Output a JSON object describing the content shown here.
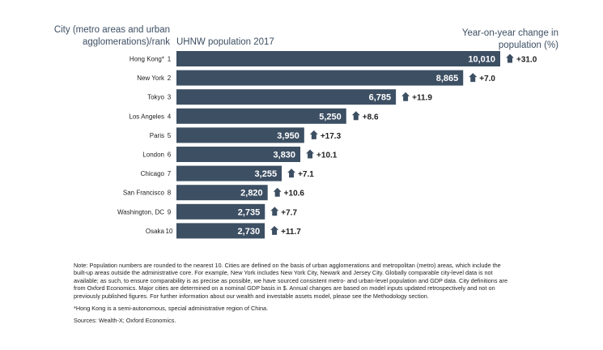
{
  "header": {
    "city_label": "City (metro areas and urban agglomerations)/rank",
    "population_label": "UHNW population 2017",
    "change_label": "Year-on-year change in population (%)"
  },
  "chart_data": {
    "type": "bar",
    "orientation": "horizontal",
    "title": "",
    "xlabel": "UHNW population 2017",
    "ylabel": "City (metro areas and urban agglomerations)/rank",
    "xlim": [
      0,
      10010
    ],
    "categories": [
      "Hong Kong*",
      "New York",
      "Tokyo",
      "Los Angeles",
      "Paris",
      "London",
      "Chicago",
      "San Francisco",
      "Washington, DC",
      "Osaka"
    ],
    "ranks": [
      "1",
      "2",
      "3",
      "4",
      "5",
      "6",
      "7",
      "8",
      "9",
      "10"
    ],
    "values": [
      10010,
      8865,
      6785,
      5250,
      3950,
      3830,
      3255,
      2820,
      2735,
      2730
    ],
    "value_labels": [
      "10,010",
      "8,865",
      "6,785",
      "5,250",
      "3,950",
      "3,830",
      "3,255",
      "2,820",
      "2,735",
      "2,730"
    ],
    "changes": [
      31.0,
      7.0,
      11.9,
      8.6,
      17.3,
      10.1,
      7.1,
      10.6,
      7.7,
      11.7
    ],
    "change_labels": [
      "+31.0",
      "+7.0",
      "+11.9",
      "+8.6",
      "+17.3",
      "+10.1",
      "+7.1",
      "+10.6",
      "+7.7",
      "+11.7"
    ],
    "bar_color": "#3d4f63"
  },
  "notes": {
    "note": "Note: Population numbers are rounded to the nearest 10. Cities are defined on the basis of urban agglomerations and metropolitan (metro) areas, which include the built-up areas outside the administrative core. For example, New York includes New York City, Newark and Jersey City. Globally comparable city-level data is not available; as such, to ensure comparability is as precise as possible, we have sourced consistent metro- and urban-level population and GDP data. City definitions are from Oxford Economics. Major cities are determined on a nominal GDP basis in $. Annual changes are based on model inputs updated retrospectively and not on previously published figures. For further information about our wealth and investable assets model, please see the Methodology section.",
    "footnote": "*Hong Kong is a semi-autonomous, special administrative region of China.",
    "sources": "Sources: Wealth-X; Oxford Economics."
  }
}
